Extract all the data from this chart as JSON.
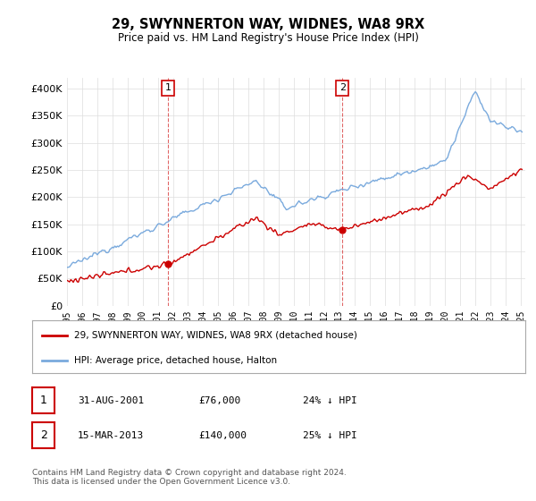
{
  "title": "29, SWYNNERTON WAY, WIDNES, WA8 9RX",
  "subtitle": "Price paid vs. HM Land Registry's House Price Index (HPI)",
  "legend_line1": "29, SWYNNERTON WAY, WIDNES, WA8 9RX (detached house)",
  "legend_line2": "HPI: Average price, detached house, Halton",
  "sale1_date": "31-AUG-2001",
  "sale1_price": "£76,000",
  "sale1_hpi": "24% ↓ HPI",
  "sale2_date": "15-MAR-2013",
  "sale2_price": "£140,000",
  "sale2_hpi": "25% ↓ HPI",
  "footnote": "Contains HM Land Registry data © Crown copyright and database right 2024.\nThis data is licensed under the Open Government Licence v3.0.",
  "hpi_color": "#7aaadd",
  "price_color": "#cc0000",
  "background_color": "#ffffff",
  "grid_color": "#dddddd",
  "ylim": [
    0,
    420000
  ],
  "yticks": [
    0,
    50000,
    100000,
    150000,
    200000,
    250000,
    300000,
    350000,
    400000
  ],
  "sale1_year": 2001.67,
  "sale1_value": 76000,
  "sale2_year": 2013.21,
  "sale2_value": 140000,
  "xstart": 1995,
  "xend": 2025
}
